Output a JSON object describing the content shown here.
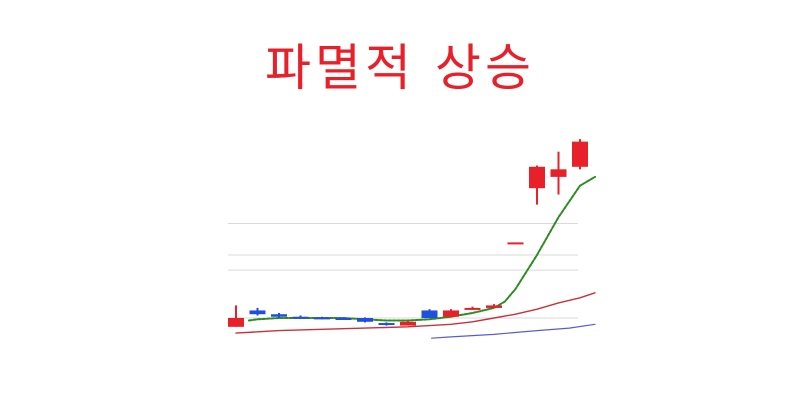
{
  "chart_data": {
    "type": "candlestick",
    "title": "파멸적 상승",
    "grid": true,
    "legend": "none",
    "axes_visible": false,
    "colors": {
      "up": "#e8202a",
      "down": "#1f4fe0",
      "grid": "#d9d9d9",
      "ma_short": "#2e8b22",
      "ma_mid": "#c8323a",
      "ma_long": "#5a5ad8",
      "title": "#e8202a"
    },
    "candles": [
      {
        "open": 33,
        "close": 40,
        "high": 50,
        "low": 33
      },
      {
        "open": 46,
        "close": 43,
        "high": 48,
        "low": 42
      },
      {
        "open": 43,
        "close": 41,
        "high": 44,
        "low": 40
      },
      {
        "open": 41,
        "close": 40.5,
        "high": 42,
        "low": 39.5
      },
      {
        "open": 40.5,
        "close": 40,
        "high": 41,
        "low": 39
      },
      {
        "open": 40,
        "close": 39.5,
        "high": 40.5,
        "low": 38.5
      },
      {
        "open": 40,
        "close": 37,
        "high": 40.5,
        "low": 36.5
      },
      {
        "open": 36,
        "close": 35,
        "high": 36.5,
        "low": 34
      },
      {
        "open": 34,
        "close": 37,
        "high": 37.5,
        "low": 34
      },
      {
        "open": 46,
        "close": 40,
        "high": 47,
        "low": 40
      },
      {
        "open": 41,
        "close": 46,
        "high": 47,
        "low": 41
      },
      {
        "open": 47,
        "close": 48,
        "high": 49,
        "low": 46.5
      },
      {
        "open": 48,
        "close": 50,
        "high": 51,
        "low": 48
      },
      {
        "open": 100,
        "close": 100,
        "high": 100,
        "low": 100
      },
      {
        "open": 143,
        "close": 160,
        "high": 161,
        "low": 130
      },
      {
        "open": 152,
        "close": 158,
        "high": 172,
        "low": 138
      },
      {
        "open": 160,
        "close": 180,
        "high": 182,
        "low": 158
      }
    ],
    "ma_short": [
      {
        "x": 0.6,
        "y": 38
      },
      {
        "x": 1,
        "y": 39
      },
      {
        "x": 2,
        "y": 40
      },
      {
        "x": 3,
        "y": 40
      },
      {
        "x": 4,
        "y": 40
      },
      {
        "x": 5,
        "y": 40
      },
      {
        "x": 6,
        "y": 39
      },
      {
        "x": 7,
        "y": 38
      },
      {
        "x": 8,
        "y": 38
      },
      {
        "x": 9,
        "y": 39
      },
      {
        "x": 10,
        "y": 41
      },
      {
        "x": 11,
        "y": 44
      },
      {
        "x": 12,
        "y": 48
      },
      {
        "x": 12.5,
        "y": 53
      },
      {
        "x": 13,
        "y": 63
      },
      {
        "x": 14,
        "y": 90
      },
      {
        "x": 15,
        "y": 120
      },
      {
        "x": 16,
        "y": 145
      },
      {
        "x": 16.7,
        "y": 152
      }
    ],
    "ma_mid": [
      {
        "x": 0,
        "y": 28
      },
      {
        "x": 2,
        "y": 30
      },
      {
        "x": 4,
        "y": 31
      },
      {
        "x": 6,
        "y": 32
      },
      {
        "x": 8,
        "y": 33
      },
      {
        "x": 10,
        "y": 35
      },
      {
        "x": 11,
        "y": 37
      },
      {
        "x": 12,
        "y": 40
      },
      {
        "x": 13,
        "y": 43
      },
      {
        "x": 14,
        "y": 47
      },
      {
        "x": 15,
        "y": 52
      },
      {
        "x": 16,
        "y": 56
      },
      {
        "x": 16.7,
        "y": 60
      }
    ],
    "ma_long": [
      {
        "x": 9.1,
        "y": 24
      },
      {
        "x": 10,
        "y": 25
      },
      {
        "x": 12,
        "y": 27
      },
      {
        "x": 14,
        "y": 30
      },
      {
        "x": 15.5,
        "y": 32
      },
      {
        "x": 16.7,
        "y": 35
      }
    ],
    "gridlines": [
      40,
      78,
      90,
      115
    ]
  }
}
